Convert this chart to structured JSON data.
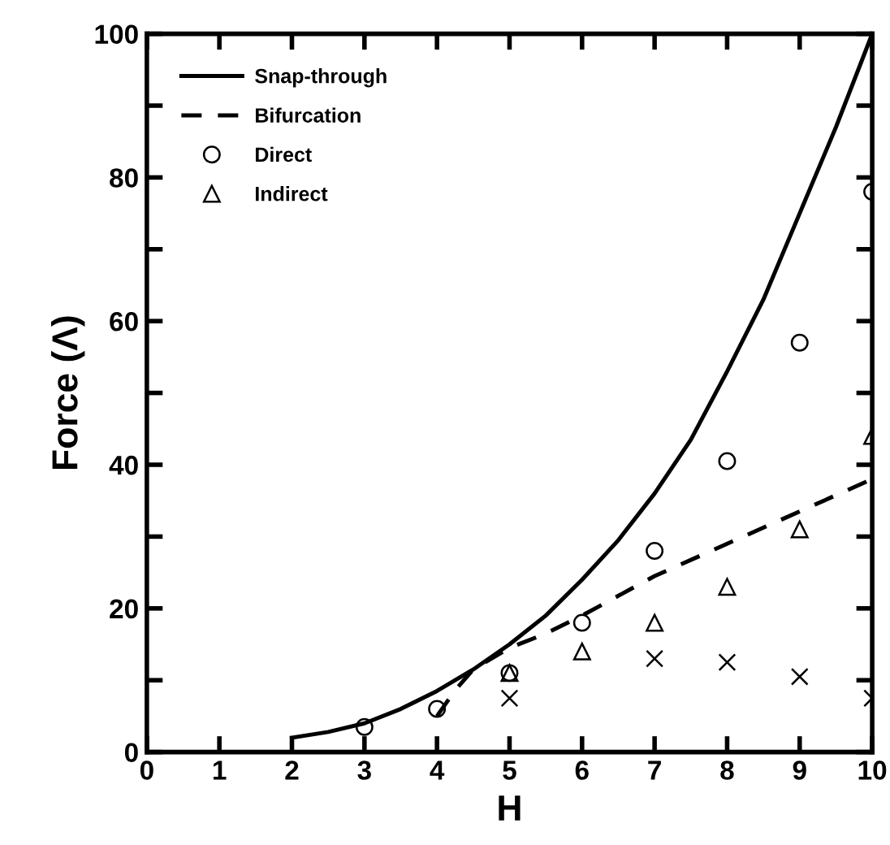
{
  "chart_data": {
    "type": "line",
    "xlabel": "H",
    "ylabel": "Force (Λ)",
    "xlim": [
      0,
      10
    ],
    "ylim": [
      0,
      100
    ],
    "xticks": [
      0,
      1,
      2,
      3,
      4,
      5,
      6,
      7,
      8,
      9,
      10
    ],
    "yticks": [
      0,
      {
        "value": 10,
        "label": null
      },
      20,
      {
        "value": 30,
        "label": null
      },
      40,
      {
        "value": 50,
        "label": null
      },
      60,
      {
        "value": 70,
        "label": null
      },
      80,
      {
        "value": 90,
        "label": null
      },
      100
    ],
    "grid": false,
    "legend": "top left",
    "series": [
      {
        "name": "Snap-through",
        "color": "#000000",
        "line_style": "solid",
        "marker": "none",
        "x": [
          2,
          2.5,
          3,
          3.5,
          4,
          4.5,
          5,
          5.5,
          6,
          6.5,
          7,
          7.5,
          8,
          8.5,
          9,
          9.5,
          10
        ],
        "values": [
          2,
          2.8,
          4,
          6,
          8.5,
          11.5,
          15,
          19,
          24,
          29.5,
          36,
          43.5,
          53,
          63,
          75,
          87,
          100
        ]
      },
      {
        "name": "Bifurcation",
        "color": "#000000",
        "line_style": "dashed",
        "marker": "none",
        "x": [
          4,
          4.25,
          4.5,
          5,
          5.5,
          6,
          7,
          8,
          9,
          10
        ],
        "values": [
          5,
          8.6,
          11.5,
          14.5,
          16.5,
          19,
          24.5,
          29,
          33.5,
          38
        ]
      },
      {
        "name": "Direct",
        "type": "scatter",
        "color": "#000000",
        "marker": "circle",
        "x": [
          3,
          4,
          5,
          6,
          7,
          8,
          9,
          10
        ],
        "values": [
          3.5,
          6,
          11,
          18,
          28,
          40.5,
          57,
          78
        ]
      },
      {
        "name": "Indirect",
        "type": "scatter",
        "color": "#000000",
        "marker": "triangle",
        "x": [
          5,
          6,
          7,
          8,
          9,
          10
        ],
        "values": [
          11,
          14,
          18,
          23,
          31,
          44
        ]
      },
      {
        "type": "scatter",
        "color": "#000000",
        "marker": "cross",
        "x": [
          5,
          7,
          8,
          9,
          10
        ],
        "values": [
          7.5,
          13,
          12.5,
          10.5,
          7.5
        ]
      }
    ]
  }
}
